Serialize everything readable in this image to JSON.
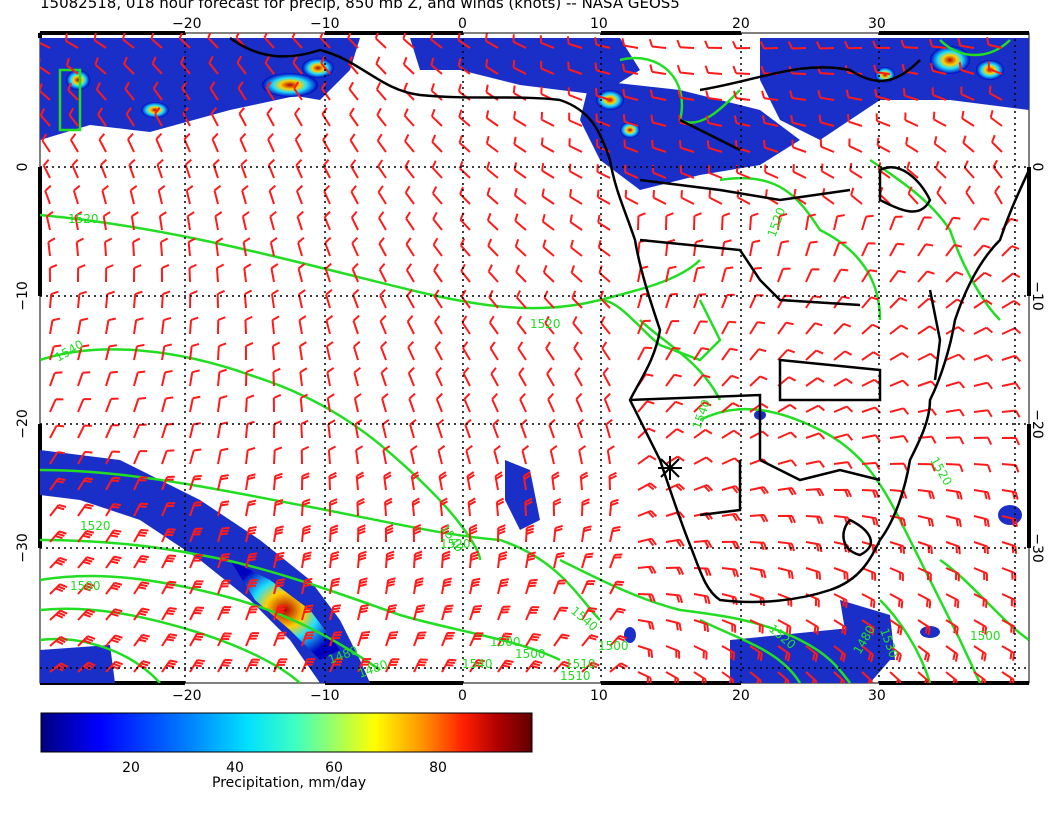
{
  "title": "15082518, 018 hour forecast for precip, 850 mb Z, and winds (knots) -- NASA GEOS5",
  "map": {
    "lon_labels_top": [
      "−20",
      "−10",
      "0",
      "10",
      "20",
      "30"
    ],
    "lon_labels_bottom": [
      "−20",
      "−10",
      "0",
      "10",
      "20",
      "30"
    ],
    "lat_labels_left": [
      "0",
      "−10",
      "−20",
      "−30"
    ],
    "lat_labels_right": [
      "0",
      "−10",
      "−20",
      "−30"
    ],
    "contour_labels": [
      "1520",
      "1520",
      "1520",
      "1540",
      "1540",
      "1520",
      "1500",
      "1480",
      "1500",
      "1510",
      "1540",
      "1520",
      "1540",
      "1500",
      "1480",
      "1520",
      "1530",
      "1520",
      "1500",
      "1540",
      "1510",
      "1480",
      "1500"
    ],
    "colors": {
      "coastline": "#000000",
      "contour": "#22dd22",
      "wind_barb": "#ff1a1a",
      "grid": "#000000"
    }
  },
  "colorbar": {
    "tick_labels": [
      "20",
      "40",
      "60",
      "80"
    ],
    "label": "Precipitation, mm/day",
    "range": [
      0,
      100
    ],
    "colors": [
      "#00007f",
      "#0000ff",
      "#0080ff",
      "#00e0ff",
      "#40ffc0",
      "#a0ff60",
      "#ffff00",
      "#ff9000",
      "#ff2000",
      "#b00000",
      "#600000"
    ]
  }
}
